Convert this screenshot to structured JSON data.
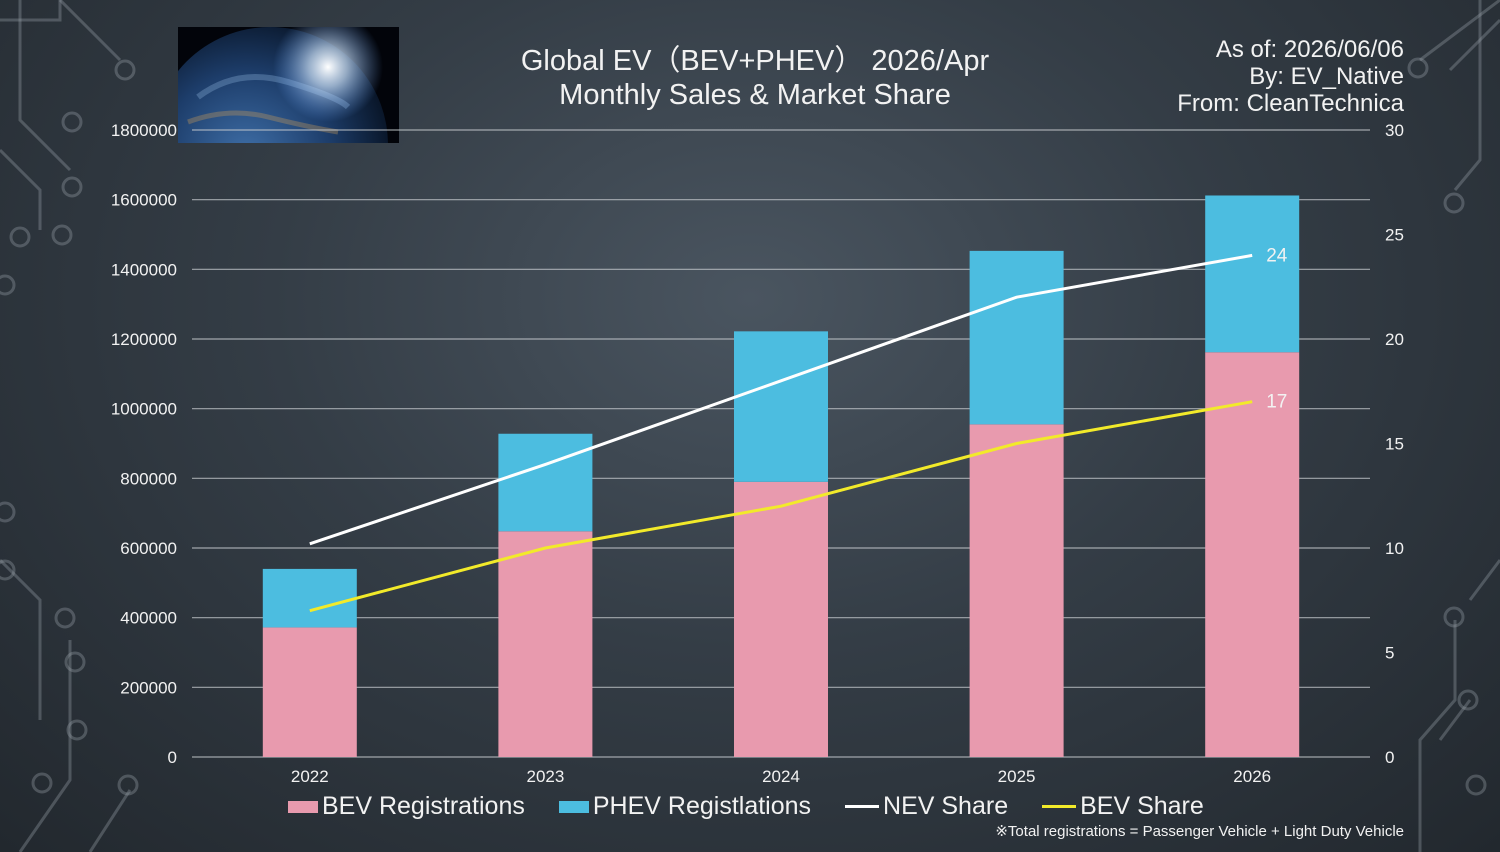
{
  "header": {
    "title_line1": "Global EV（BEV+PHEV） 2026/Apr",
    "title_line2": "Monthly Sales & Market Share",
    "as_of": "As of: 2026/06/06",
    "by": "By: EV_Native",
    "from": "From: CleanTechnica"
  },
  "footnote": "※Total registrations = Passenger Vehicle + Light Duty Vehicle",
  "colors": {
    "bev": "#e89aae",
    "phev": "#4cbde0",
    "nev_line": "#ffffff",
    "bev_line": "#f2ea2a",
    "grid": "#c8ccd0"
  },
  "legend": {
    "bev": "BEV Registrations",
    "phev": "PHEV Registlations",
    "nev": "NEV Share",
    "bevshare": "BEV Share"
  },
  "chart_data": {
    "type": "bar",
    "categories": [
      "2022",
      "2023",
      "2024",
      "2025",
      "2026"
    ],
    "series": [
      {
        "name": "BEV Registrations",
        "kind": "bar",
        "stack": "total",
        "axis": "left",
        "values": [
          372000,
          648000,
          790000,
          955000,
          1162000
        ]
      },
      {
        "name": "PHEV Registlations",
        "kind": "bar",
        "stack": "total",
        "axis": "left",
        "values": [
          168000,
          280000,
          432000,
          498000,
          450000
        ]
      },
      {
        "name": "NEV Share",
        "kind": "line",
        "axis": "right",
        "values": [
          10.2,
          14,
          18,
          22,
          24
        ]
      },
      {
        "name": "BEV Share",
        "kind": "line",
        "axis": "right",
        "values": [
          7,
          10,
          12,
          15,
          17
        ]
      }
    ],
    "data_labels": [
      {
        "series": "NEV Share",
        "category": "2026",
        "text": "24"
      },
      {
        "series": "BEV Share",
        "category": "2026",
        "text": "17"
      }
    ],
    "y_left": {
      "min": 0,
      "max": 1800000,
      "ticks": [
        0,
        200000,
        400000,
        600000,
        800000,
        1000000,
        1200000,
        1400000,
        1600000,
        1800000
      ]
    },
    "y_right": {
      "min": 0,
      "max": 30,
      "ticks": [
        0,
        5,
        10,
        15,
        20,
        25,
        30
      ]
    },
    "grid": true,
    "legend_position": "bottom"
  }
}
